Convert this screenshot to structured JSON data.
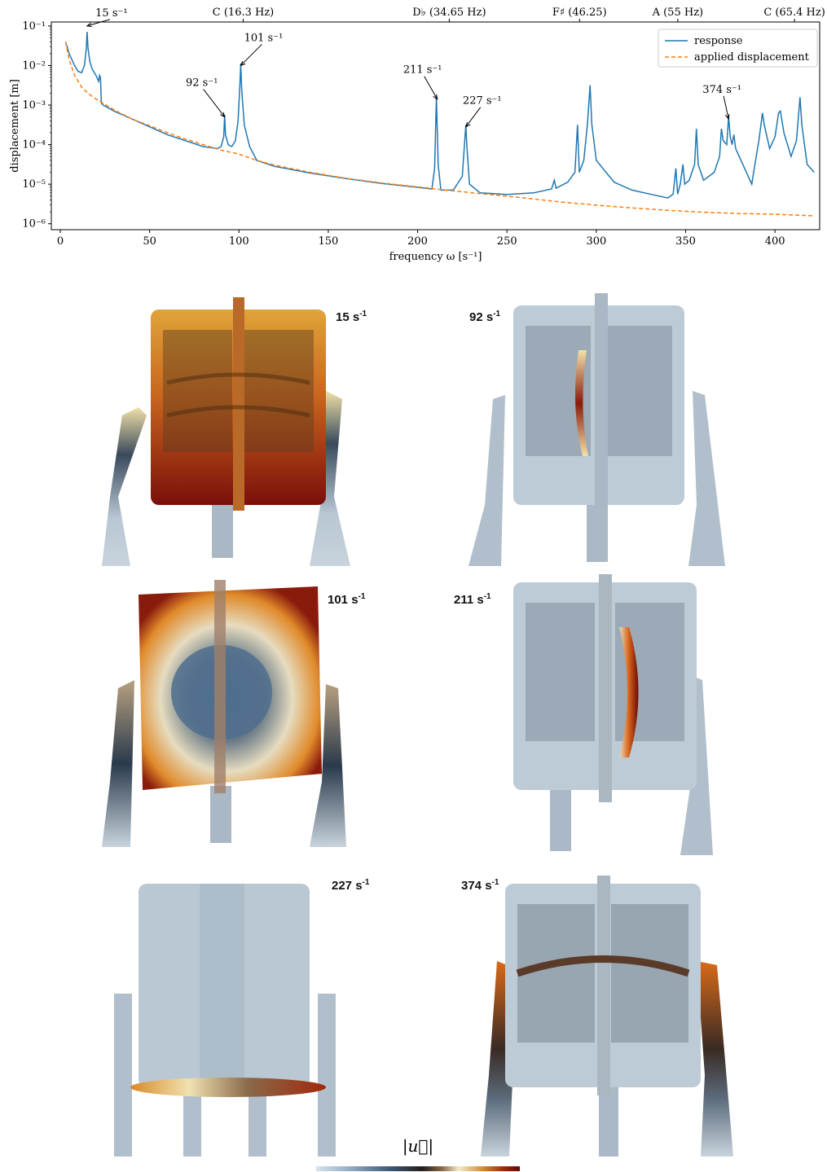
{
  "chart_data": {
    "type": "line",
    "xlabel": "frequency ω [s⁻¹]",
    "ylabel": "displacement [m]",
    "xlim": [
      -5,
      425
    ],
    "ylim_log10": [
      -6.15,
      -0.9
    ],
    "y_scale": "log",
    "x_ticks": [
      0,
      50,
      100,
      150,
      200,
      250,
      300,
      350,
      400
    ],
    "x_tick_labels": [
      "0",
      "50",
      "100",
      "150",
      "200",
      "250",
      "300",
      "350",
      "400"
    ],
    "y_ticks": [
      -6,
      -5,
      -4,
      -3,
      -2,
      -1
    ],
    "y_tick_labels": [
      "10⁻⁶",
      "10⁻⁵",
      "10⁻⁴",
      "10⁻³",
      "10⁻²",
      "10⁻¹"
    ],
    "top_axis": [
      {
        "x": 102.4,
        "label": "C (16.3 Hz)"
      },
      {
        "x": 217.7,
        "label": "D♭ (34.65 Hz)"
      },
      {
        "x": 290.6,
        "label": "F♯ (46.25)"
      },
      {
        "x": 345.6,
        "label": "A (55 Hz)"
      },
      {
        "x": 410.9,
        "label": "C (65.4 Hz)"
      }
    ],
    "legend": {
      "position": "top-right",
      "entries": [
        "response",
        "applied displacement"
      ]
    },
    "series": [
      {
        "name": "response",
        "color": "#1f77b4",
        "style": "solid",
        "points": [
          [
            3,
            -1.4
          ],
          [
            5,
            -1.7
          ],
          [
            8,
            -2.0
          ],
          [
            10,
            -2.15
          ],
          [
            12,
            -2.18
          ],
          [
            13.5,
            -2.0
          ],
          [
            14.5,
            -1.6
          ],
          [
            15,
            -1.15
          ],
          [
            15.5,
            -1.55
          ],
          [
            16.5,
            -1.9
          ],
          [
            18,
            -2.1
          ],
          [
            20,
            -2.25
          ],
          [
            21.5,
            -2.4
          ],
          [
            22,
            -2.25
          ],
          [
            22.5,
            -2.3
          ],
          [
            23,
            -2.95
          ],
          [
            24,
            -3.0
          ],
          [
            30,
            -3.15
          ],
          [
            40,
            -3.35
          ],
          [
            50,
            -3.55
          ],
          [
            60,
            -3.75
          ],
          [
            70,
            -3.9
          ],
          [
            80,
            -4.05
          ],
          [
            88,
            -4.1
          ],
          [
            90,
            -4.05
          ],
          [
            91.5,
            -3.8
          ],
          [
            92,
            -3.25
          ],
          [
            92.5,
            -3.75
          ],
          [
            94,
            -4.0
          ],
          [
            96,
            -4.05
          ],
          [
            98,
            -3.9
          ],
          [
            99.5,
            -3.4
          ],
          [
            100.5,
            -2.5
          ],
          [
            101,
            -1.95
          ],
          [
            101.5,
            -2.6
          ],
          [
            103,
            -3.5
          ],
          [
            106,
            -4.05
          ],
          [
            110,
            -4.4
          ],
          [
            120,
            -4.55
          ],
          [
            140,
            -4.72
          ],
          [
            160,
            -4.86
          ],
          [
            180,
            -4.98
          ],
          [
            200,
            -5.08
          ],
          [
            208,
            -5.12
          ],
          [
            209.5,
            -4.6
          ],
          [
            210.5,
            -2.8
          ],
          [
            211.5,
            -4.5
          ],
          [
            213,
            -5.15
          ],
          [
            220,
            -5.15
          ],
          [
            225,
            -4.8
          ],
          [
            226.5,
            -3.8
          ],
          [
            227,
            -3.5
          ],
          [
            227.5,
            -4.0
          ],
          [
            229,
            -5.0
          ],
          [
            235,
            -5.22
          ],
          [
            250,
            -5.26
          ],
          [
            265,
            -5.22
          ],
          [
            275,
            -5.12
          ],
          [
            276.5,
            -4.9
          ],
          [
            277.5,
            -5.1
          ],
          [
            284,
            -4.95
          ],
          [
            288,
            -4.7
          ],
          [
            289.5,
            -3.5
          ],
          [
            290.5,
            -4.7
          ],
          [
            293,
            -4.4
          ],
          [
            295,
            -3.5
          ],
          [
            296.5,
            -2.5
          ],
          [
            297.5,
            -3.5
          ],
          [
            300,
            -4.4
          ],
          [
            310,
            -4.95
          ],
          [
            320,
            -5.15
          ],
          [
            330,
            -5.25
          ],
          [
            340,
            -5.35
          ],
          [
            343,
            -5.25
          ],
          [
            344.5,
            -4.6
          ],
          [
            345.5,
            -5.25
          ],
          [
            347,
            -5.0
          ],
          [
            348.5,
            -4.5
          ],
          [
            349.5,
            -5.0
          ],
          [
            352,
            -4.9
          ],
          [
            355,
            -4.5
          ],
          [
            356,
            -3.6
          ],
          [
            357,
            -4.5
          ],
          [
            360,
            -4.9
          ],
          [
            366,
            -4.7
          ],
          [
            369,
            -4.3
          ],
          [
            370,
            -3.6
          ],
          [
            371,
            -3.9
          ],
          [
            373,
            -4.0
          ],
          [
            374,
            -3.3
          ],
          [
            375,
            -3.8
          ],
          [
            376,
            -4.0
          ],
          [
            377,
            -3.75
          ],
          [
            378,
            -4.1
          ],
          [
            382,
            -4.5
          ],
          [
            385,
            -4.8
          ],
          [
            387,
            -5.0
          ],
          [
            388,
            -4.7
          ],
          [
            391,
            -3.9
          ],
          [
            393,
            -3.2
          ],
          [
            394,
            -3.5
          ],
          [
            397,
            -4.1
          ],
          [
            400,
            -3.8
          ],
          [
            402,
            -3.2
          ],
          [
            403,
            -3.15
          ],
          [
            405,
            -3.7
          ],
          [
            409,
            -4.3
          ],
          [
            412,
            -3.9
          ],
          [
            414,
            -2.8
          ],
          [
            415,
            -3.5
          ],
          [
            418,
            -4.5
          ],
          [
            422,
            -4.7
          ]
        ]
      },
      {
        "name": "applied displacement",
        "color": "#ff7f0e",
        "style": "dashed",
        "points": [
          [
            3,
            -1.4
          ],
          [
            5,
            -1.85
          ],
          [
            8,
            -2.25
          ],
          [
            12,
            -2.55
          ],
          [
            16,
            -2.72
          ],
          [
            20,
            -2.85
          ],
          [
            24,
            -2.95
          ],
          [
            30,
            -3.12
          ],
          [
            40,
            -3.35
          ],
          [
            50,
            -3.52
          ],
          [
            60,
            -3.7
          ],
          [
            70,
            -3.86
          ],
          [
            80,
            -4.0
          ],
          [
            90,
            -4.14
          ],
          [
            100,
            -4.24
          ],
          [
            110,
            -4.4
          ],
          [
            120,
            -4.52
          ],
          [
            140,
            -4.7
          ],
          [
            160,
            -4.85
          ],
          [
            180,
            -4.97
          ],
          [
            200,
            -5.07
          ],
          [
            220,
            -5.17
          ],
          [
            240,
            -5.26
          ],
          [
            260,
            -5.35
          ],
          [
            280,
            -5.45
          ],
          [
            300,
            -5.53
          ],
          [
            320,
            -5.6
          ],
          [
            340,
            -5.66
          ],
          [
            360,
            -5.71
          ],
          [
            380,
            -5.74
          ],
          [
            400,
            -5.76
          ],
          [
            422,
            -5.8
          ]
        ]
      }
    ],
    "annotations": [
      {
        "text": "15 s⁻¹",
        "x": 15,
        "y": -1.0
      },
      {
        "text": "92 s⁻¹",
        "x": 92,
        "y": -3.3
      },
      {
        "text": "101 s⁻¹",
        "x": 101,
        "y": -2.0
      },
      {
        "text": "211 s⁻¹",
        "x": 211,
        "y": -2.85
      },
      {
        "text": "227 s⁻¹",
        "x": 227,
        "y": -3.55
      },
      {
        "text": "374 s⁻¹",
        "x": 374,
        "y": -3.35
      }
    ]
  },
  "panels": [
    {
      "label": "15 s",
      "sup": "-1"
    },
    {
      "label": "92 s",
      "sup": "-1"
    },
    {
      "label": "101 s",
      "sup": "-1"
    },
    {
      "label": "211 s",
      "sup": "-1"
    },
    {
      "label": "227 s",
      "sup": "-1"
    },
    {
      "label": "374 s",
      "sup": "-1"
    }
  ],
  "colorbar": {
    "title": "|u⃗|"
  },
  "colors": {
    "steel": "#b8c7d3",
    "dark_steel": "#4a5a6a",
    "orange": "#d88a2a",
    "dark_red": "#7a0c0c"
  }
}
